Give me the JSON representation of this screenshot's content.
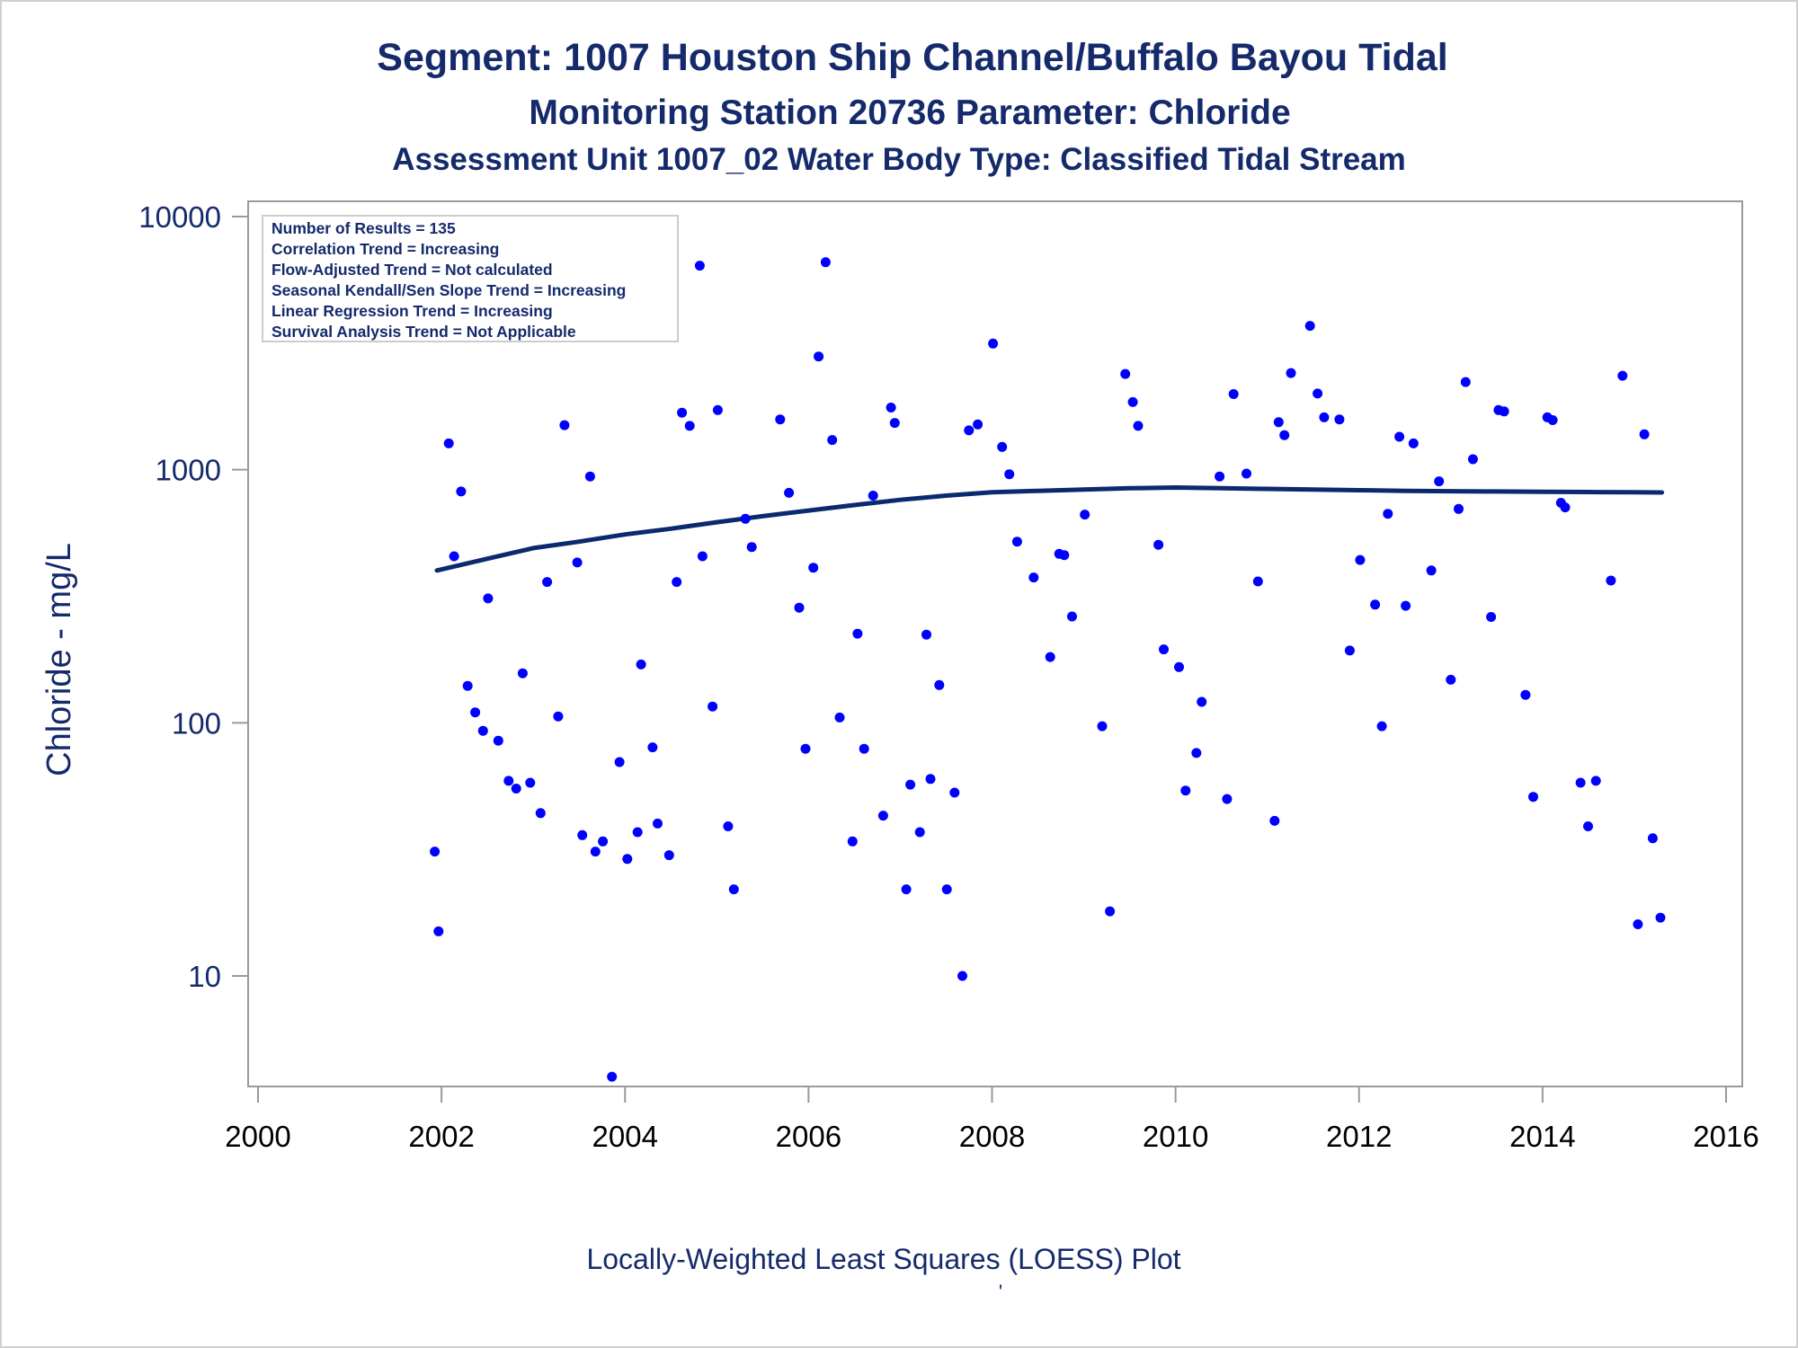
{
  "colors": {
    "title": "#152a6b",
    "axis_label": "#152a6b",
    "y_tick_label": "#152a6b",
    "x_tick_label": "#000000",
    "point": "#0000ff",
    "loess_line": "#0b2a6e",
    "frame": "#9a9a9a",
    "info_box_border": "#cccccc"
  },
  "chart_data": {
    "type": "scatter",
    "title": "Segment: 1007  Houston Ship Channel/Buffalo Bayou Tidal",
    "subtitle": "Monitoring Station 20736 Parameter: Chloride",
    "subtitle2": "Assessment Unit 1007_02   Water Body Type: Classified Tidal Stream",
    "ylabel": "Chloride - mg/L",
    "xlabel": "Locally-Weighted Least Squares (LOESS) Plot",
    "footnote": "'",
    "yscale": "log",
    "ylim": [
      3.9,
      12000
    ],
    "xlim": [
      1999.95,
      2016.3
    ],
    "y_ticks": [
      10,
      100,
      1000,
      10000
    ],
    "y_tick_labels": [
      "10",
      "100",
      "1000",
      "10000"
    ],
    "x_ticks": [
      2000,
      2002,
      2004,
      2006,
      2008,
      2010,
      2012,
      2014,
      2016
    ],
    "x_tick_labels": [
      "2000",
      "2002",
      "2004",
      "2006",
      "2008",
      "2010",
      "2012",
      "2014",
      "2016"
    ],
    "grid": false,
    "legend_location": "top-left",
    "info_box": [
      "Number of Results = 135",
      "Correlation Trend = Increasing",
      "Flow-Adjusted Trend = Not calculated",
      "Seasonal Kendall/Sen Slope Trend = Increasing",
      "Linear Regression Trend = Increasing",
      "Survival Analysis Trend = Not Applicable"
    ],
    "series": [
      {
        "type": "scatter",
        "points": [
          {
            "x": "2001-12-05",
            "y": 31
          },
          {
            "x": "2001-12-20",
            "y": 15
          },
          {
            "x": "2002-01-30",
            "y": 1270
          },
          {
            "x": "2002-02-20",
            "y": 455
          },
          {
            "x": "2002-03-20",
            "y": 820
          },
          {
            "x": "2002-04-15",
            "y": 140
          },
          {
            "x": "2002-05-15",
            "y": 110
          },
          {
            "x": "2002-06-15",
            "y": 93
          },
          {
            "x": "2002-07-05",
            "y": 310
          },
          {
            "x": "2002-08-15",
            "y": 85
          },
          {
            "x": "2002-09-25",
            "y": 59
          },
          {
            "x": "2002-10-25",
            "y": 55
          },
          {
            "x": "2002-11-20",
            "y": 157
          },
          {
            "x": "2002-12-20",
            "y": 58
          },
          {
            "x": "2003-01-30",
            "y": 44
          },
          {
            "x": "2003-02-25",
            "y": 360
          },
          {
            "x": "2003-04-10",
            "y": 106
          },
          {
            "x": "2003-05-05",
            "y": 1500
          },
          {
            "x": "2003-06-25",
            "y": 430
          },
          {
            "x": "2003-07-15",
            "y": 36
          },
          {
            "x": "2003-08-15",
            "y": 940
          },
          {
            "x": "2003-09-05",
            "y": 31
          },
          {
            "x": "2003-10-05",
            "y": 34
          },
          {
            "x": "2003-11-10",
            "y": 4
          },
          {
            "x": "2003-12-10",
            "y": 70
          },
          {
            "x": "2004-01-10",
            "y": 29
          },
          {
            "x": "2004-02-20",
            "y": 37
          },
          {
            "x": "2004-03-05",
            "y": 170
          },
          {
            "x": "2004-04-20",
            "y": 80
          },
          {
            "x": "2004-05-10",
            "y": 40
          },
          {
            "x": "2004-06-25",
            "y": 30
          },
          {
            "x": "2004-07-25",
            "y": 360
          },
          {
            "x": "2004-08-15",
            "y": 1680
          },
          {
            "x": "2004-09-15",
            "y": 1490
          },
          {
            "x": "2004-10-25",
            "y": 6400
          },
          {
            "x": "2004-11-05",
            "y": 455
          },
          {
            "x": "2004-12-15",
            "y": 116
          },
          {
            "x": "2005-01-05",
            "y": 1720
          },
          {
            "x": "2005-02-15",
            "y": 39
          },
          {
            "x": "2005-03-10",
            "y": 22
          },
          {
            "x": "2005-04-25",
            "y": 640
          },
          {
            "x": "2005-05-20",
            "y": 495
          },
          {
            "x": "2005-09-10",
            "y": 1580
          },
          {
            "x": "2005-10-15",
            "y": 810
          },
          {
            "x": "2005-11-25",
            "y": 285
          },
          {
            "x": "2005-12-20",
            "y": 79
          },
          {
            "x": "2006-01-20",
            "y": 410
          },
          {
            "x": "2006-02-10",
            "y": 2800
          },
          {
            "x": "2006-03-10",
            "y": 6600
          },
          {
            "x": "2006-04-05",
            "y": 1310
          },
          {
            "x": "2006-05-05",
            "y": 105
          },
          {
            "x": "2006-06-25",
            "y": 34
          },
          {
            "x": "2006-07-15",
            "y": 225
          },
          {
            "x": "2006-08-10",
            "y": 79
          },
          {
            "x": "2006-09-15",
            "y": 790
          },
          {
            "x": "2006-10-25",
            "y": 43
          },
          {
            "x": "2006-11-25",
            "y": 1760
          },
          {
            "x": "2006-12-10",
            "y": 1530
          },
          {
            "x": "2007-01-25",
            "y": 22
          },
          {
            "x": "2007-02-10",
            "y": 57
          },
          {
            "x": "2007-03-20",
            "y": 37
          },
          {
            "x": "2007-04-15",
            "y": 223
          },
          {
            "x": "2007-05-01",
            "y": 60
          },
          {
            "x": "2007-06-05",
            "y": 141
          },
          {
            "x": "2007-07-05",
            "y": 22
          },
          {
            "x": "2007-08-05",
            "y": 53
          },
          {
            "x": "2007-09-05",
            "y": 10
          },
          {
            "x": "2007-10-01",
            "y": 1430
          },
          {
            "x": "2007-11-05",
            "y": 1510
          },
          {
            "x": "2008-01-05",
            "y": 3150
          },
          {
            "x": "2008-02-10",
            "y": 1230
          },
          {
            "x": "2008-03-10",
            "y": 960
          },
          {
            "x": "2008-04-10",
            "y": 520
          },
          {
            "x": "2008-06-15",
            "y": 375
          },
          {
            "x": "2008-08-20",
            "y": 182
          },
          {
            "x": "2008-09-25",
            "y": 465
          },
          {
            "x": "2008-10-15",
            "y": 460
          },
          {
            "x": "2008-11-15",
            "y": 263
          },
          {
            "x": "2009-01-05",
            "y": 665
          },
          {
            "x": "2009-03-15",
            "y": 97
          },
          {
            "x": "2009-04-15",
            "y": 18
          },
          {
            "x": "2009-06-15",
            "y": 2390
          },
          {
            "x": "2009-07-15",
            "y": 1850
          },
          {
            "x": "2009-08-05",
            "y": 1490
          },
          {
            "x": "2009-10-25",
            "y": 505
          },
          {
            "x": "2009-11-15",
            "y": 195
          },
          {
            "x": "2010-01-15",
            "y": 166
          },
          {
            "x": "2010-02-10",
            "y": 54
          },
          {
            "x": "2010-03-25",
            "y": 76
          },
          {
            "x": "2010-04-15",
            "y": 121
          },
          {
            "x": "2010-06-25",
            "y": 940
          },
          {
            "x": "2010-07-25",
            "y": 50
          },
          {
            "x": "2010-08-20",
            "y": 1990
          },
          {
            "x": "2010-10-10",
            "y": 965
          },
          {
            "x": "2010-11-25",
            "y": 362
          },
          {
            "x": "2011-01-30",
            "y": 41
          },
          {
            "x": "2011-02-15",
            "y": 1540
          },
          {
            "x": "2011-03-10",
            "y": 1370
          },
          {
            "x": "2011-04-05",
            "y": 2410
          },
          {
            "x": "2011-06-20",
            "y": 3700
          },
          {
            "x": "2011-07-20",
            "y": 2000
          },
          {
            "x": "2011-08-15",
            "y": 1610
          },
          {
            "x": "2011-10-15",
            "y": 1580
          },
          {
            "x": "2011-11-25",
            "y": 193
          },
          {
            "x": "2012-01-05",
            "y": 440
          },
          {
            "x": "2012-03-05",
            "y": 293
          },
          {
            "x": "2012-04-01",
            "y": 97
          },
          {
            "x": "2012-04-25",
            "y": 670
          },
          {
            "x": "2012-06-10",
            "y": 1350
          },
          {
            "x": "2012-07-05",
            "y": 290
          },
          {
            "x": "2012-08-05",
            "y": 1270
          },
          {
            "x": "2012-10-15",
            "y": 400
          },
          {
            "x": "2012-11-15",
            "y": 900
          },
          {
            "x": "2013-01-01",
            "y": 148
          },
          {
            "x": "2013-02-01",
            "y": 700
          },
          {
            "x": "2013-03-01",
            "y": 2220
          },
          {
            "x": "2013-03-30",
            "y": 1100
          },
          {
            "x": "2013-06-10",
            "y": 262
          },
          {
            "x": "2013-07-10",
            "y": 1720
          },
          {
            "x": "2013-08-01",
            "y": 1700
          },
          {
            "x": "2013-10-25",
            "y": 129
          },
          {
            "x": "2013-11-25",
            "y": 51
          },
          {
            "x": "2014-01-20",
            "y": 1610
          },
          {
            "x": "2014-02-10",
            "y": 1570
          },
          {
            "x": "2014-03-15",
            "y": 740
          },
          {
            "x": "2014-04-01",
            "y": 710
          },
          {
            "x": "2014-06-01",
            "y": 58
          },
          {
            "x": "2014-07-01",
            "y": 39
          },
          {
            "x": "2014-08-01",
            "y": 59
          },
          {
            "x": "2014-09-30",
            "y": 365
          },
          {
            "x": "2014-11-15",
            "y": 2350
          },
          {
            "x": "2015-01-15",
            "y": 16
          },
          {
            "x": "2015-02-10",
            "y": 1380
          },
          {
            "x": "2015-03-15",
            "y": 35
          },
          {
            "x": "2015-04-15",
            "y": 17
          }
        ]
      },
      {
        "type": "line",
        "x": [
          2001.95,
          2002.5,
          2003.0,
          2003.5,
          2004.0,
          2004.5,
          2005.0,
          2005.5,
          2006.0,
          2006.5,
          2007.0,
          2007.5,
          2008.0,
          2008.5,
          2009.0,
          2009.5,
          2010.0,
          2010.5,
          2011.0,
          2011.5,
          2012.0,
          2012.5,
          2013.0,
          2013.5,
          2014.0,
          2014.5,
          2015.0,
          2015.3
        ],
        "y": [
          400,
          445,
          490,
          520,
          555,
          585,
          620,
          655,
          690,
          725,
          760,
          790,
          815,
          825,
          835,
          845,
          850,
          845,
          840,
          835,
          830,
          825,
          822,
          820,
          818,
          816,
          814,
          813
        ]
      }
    ]
  }
}
